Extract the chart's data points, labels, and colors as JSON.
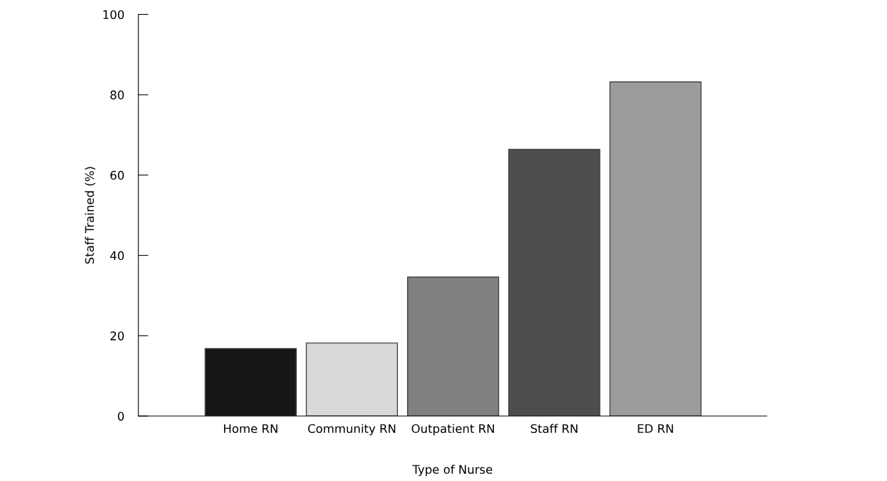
{
  "chart_data": {
    "type": "bar",
    "xlabel": "Type of Nurse",
    "ylabel": "Staff Trained (%)",
    "categories": [
      "Home RN",
      "Community RN",
      "Outpatient RN",
      "Staff RN",
      "ED RN"
    ],
    "values": [
      16.8,
      18.2,
      34.6,
      66.4,
      83.2
    ],
    "colors": [
      "#161616",
      "#d9d9d9",
      "#808080",
      "#4d4d4d",
      "#9c9c9c"
    ],
    "ylim": [
      0,
      100
    ],
    "yticks": [
      0,
      20,
      40,
      60,
      80,
      100
    ],
    "grid": false
  }
}
